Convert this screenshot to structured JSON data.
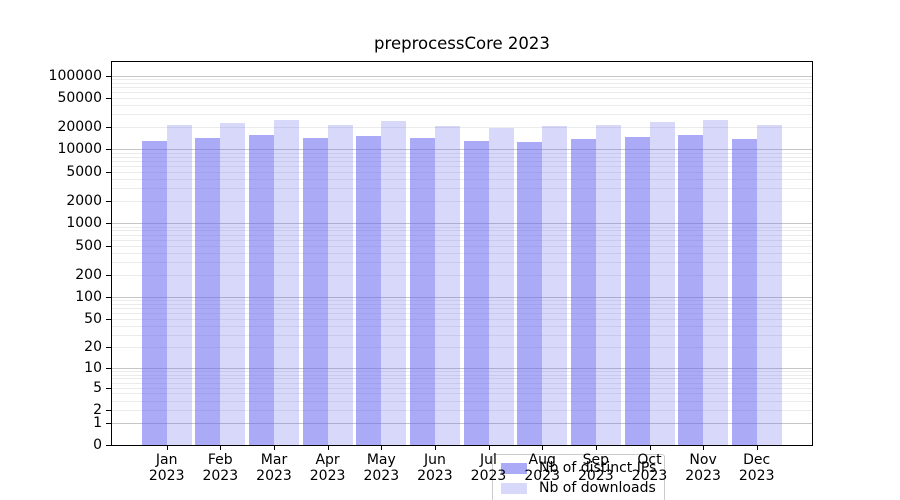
{
  "chart_data": {
    "type": "bar",
    "title": "preprocessCore 2023",
    "year": "2023",
    "months": [
      "Jan",
      "Feb",
      "Mar",
      "Apr",
      "May",
      "Jun",
      "Jul",
      "Aug",
      "Sep",
      "Oct",
      "Nov",
      "Dec"
    ],
    "series": [
      {
        "name": "Nb of distinct IPs",
        "color": "rgba(100,100,240,0.55)",
        "values": [
          13100,
          14350,
          15800,
          14350,
          15300,
          14300,
          13100,
          12700,
          13900,
          14800,
          15800,
          13800
        ]
      },
      {
        "name": "Nb of downloads",
        "color": "rgba(100,100,240,0.25)",
        "values": [
          21300,
          22500,
          24900,
          21700,
          24300,
          20800,
          19600,
          20900,
          21400,
          23600,
          24700,
          21100
        ]
      }
    ],
    "yscale": "log10(value+1)",
    "y_tick_values": [
      100000,
      50000,
      20000,
      10000,
      5000,
      2000,
      1000,
      500,
      200,
      100,
      50,
      20,
      10,
      5,
      2,
      1,
      0
    ],
    "ylim": [
      0,
      150000
    ],
    "grid": "horizontal",
    "legend_position": "inside-bottom-center",
    "colors": {
      "grid_major": "#c6c6c6",
      "grid_minor": "#ebebeb",
      "axis": "#000000",
      "background": "#ffffff"
    }
  }
}
